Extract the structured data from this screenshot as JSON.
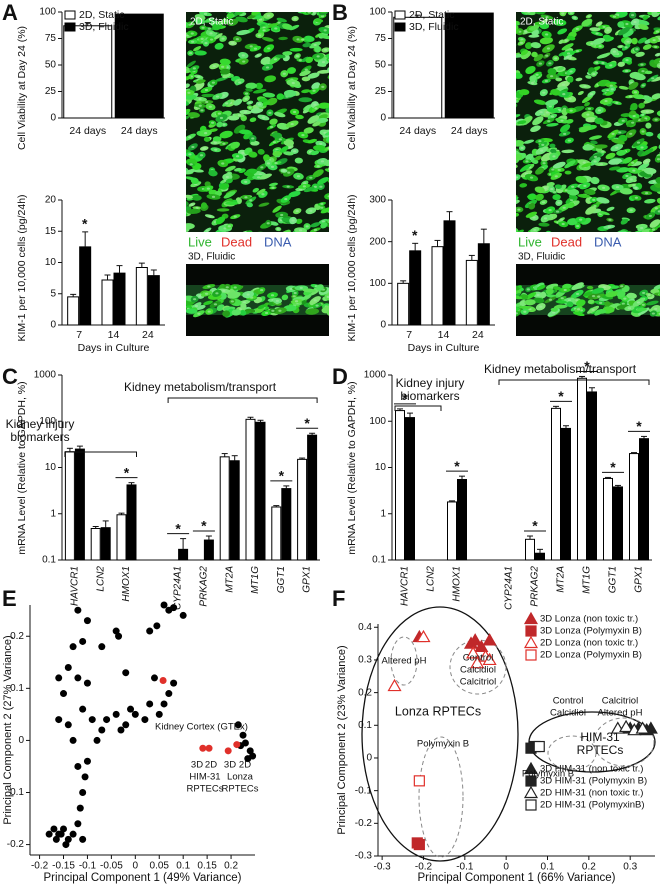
{
  "panels": [
    "A",
    "B",
    "C",
    "D",
    "E",
    "F"
  ],
  "micrographs": [
    {
      "top_title": "2D, Static",
      "bottom_title": "3D, Fluidic",
      "stains": [
        {
          "text": "Live",
          "color": "#2fb52f"
        },
        {
          "text": "Dead",
          "color": "#e0302a"
        },
        {
          "text": "DNA",
          "color": "#3a5cae"
        }
      ]
    },
    {
      "top_title": "2D, Static",
      "bottom_title": "3D, Fluidic",
      "stains": [
        {
          "text": "Live",
          "color": "#2fb52f"
        },
        {
          "text": "Dead",
          "color": "#e0302a"
        },
        {
          "text": "DNA",
          "color": "#3a5cae"
        }
      ]
    }
  ],
  "chart_data": [
    {
      "type": "bar",
      "ylabel": "Cell Viability at Day 24 (%)",
      "categories": [
        "24 days",
        "24 days"
      ],
      "legend": true,
      "series": [
        {
          "name": "2D, Static",
          "color": "#ffffff",
          "values": [
            87,
            null
          ],
          "errors": [
            3,
            null
          ]
        },
        {
          "name": "3D, Fluidic",
          "color": "#000000",
          "values": [
            null,
            98
          ],
          "errors": [
            null,
            null
          ]
        }
      ],
      "ylim": [
        0,
        100
      ],
      "yticks": [
        0,
        25,
        50,
        75,
        100
      ]
    },
    {
      "type": "bar",
      "ylabel": "KIM-1 per 10,000 cells (pg/24h)",
      "xlabel": "Days in Culture",
      "categories": [
        "7",
        "14",
        "24"
      ],
      "series": [
        {
          "color": "#ffffff",
          "values": [
            4.5,
            7.2,
            9.2
          ],
          "errors": [
            0.4,
            0.8,
            0.7
          ]
        },
        {
          "color": "#000000",
          "values": [
            12.5,
            8.3,
            7.9
          ],
          "errors": [
            2.4,
            1.2,
            0.9
          ]
        }
      ],
      "significance": [
        "*",
        null,
        null
      ],
      "ylim": [
        0,
        20
      ],
      "yticks": [
        0,
        5,
        10,
        15,
        20
      ]
    },
    {
      "type": "bar",
      "ylabel": "Cell Viability at Day 24 (%)",
      "categories": [
        "24 days",
        "24 days"
      ],
      "legend": true,
      "series": [
        {
          "name": "2D, Static",
          "color": "#ffffff",
          "values": [
            95,
            null
          ],
          "errors": [
            2,
            null
          ]
        },
        {
          "name": "3D, Fluidic",
          "color": "#000000",
          "values": [
            null,
            99
          ],
          "errors": [
            null,
            null
          ]
        }
      ],
      "ylim": [
        0,
        100
      ],
      "yticks": [
        0,
        25,
        50,
        75,
        100
      ]
    },
    {
      "type": "bar",
      "ylabel": "KIM-1 per 10,000 cells (pg/24h)",
      "xlabel": "Days in Culture",
      "categories": [
        "7",
        "14",
        "24"
      ],
      "series": [
        {
          "color": "#ffffff",
          "values": [
            100,
            188,
            155
          ],
          "errors": [
            6,
            15,
            12
          ]
        },
        {
          "color": "#000000",
          "values": [
            178,
            250,
            195
          ],
          "errors": [
            18,
            22,
            35
          ]
        }
      ],
      "significance": [
        "*",
        null,
        null
      ],
      "ylim": [
        0,
        300
      ],
      "yticks": [
        0,
        100,
        200,
        300
      ]
    },
    {
      "type": "bar",
      "ylabel": "mRNA Level (Relative to GAPDH, %)",
      "log_scale": true,
      "categories": [
        "HAVCR1",
        "LCN2",
        "HMOX1",
        "CYP24A1",
        "PRKAG2",
        "MT2A",
        "MT1G",
        "GGT1",
        "GPX1"
      ],
      "series": [
        {
          "color": "#ffffff",
          "values": [
            22,
            0.48,
            0.95,
            null,
            null,
            17,
            110,
            1.4,
            15
          ],
          "errors": [
            4,
            0.05,
            0.08,
            null,
            null,
            3,
            12,
            0.1,
            1
          ]
        },
        {
          "color": "#000000",
          "values": [
            25,
            0.5,
            4.2,
            0.17,
            0.27,
            14,
            95,
            3.5,
            50
          ],
          "errors": [
            4,
            0.2,
            0.5,
            0.12,
            0.06,
            4,
            10,
            0.5,
            5
          ]
        }
      ],
      "significance": [
        null,
        null,
        "*",
        "*",
        "*",
        null,
        null,
        "*",
        "*"
      ],
      "annotations": [
        "Kidney injury",
        "biomarkers",
        "Kidney metabolism/transport"
      ],
      "ylim": [
        0.1,
        1000
      ],
      "yticks": [
        0.1,
        1,
        10,
        100,
        1000
      ]
    },
    {
      "type": "bar",
      "ylabel": "mRNA Level (Relative to GAPDH, %)",
      "log_scale": true,
      "categories": [
        "HAVCR1",
        "LCN2",
        "HMOX1",
        "CYP24A1",
        "PRKAG2",
        "MT2A",
        "MT1G",
        "GGT1",
        "GPX1"
      ],
      "series": [
        {
          "color": "#ffffff",
          "values": [
            170,
            null,
            1.8,
            null,
            0.28,
            190,
            850,
            5.8,
            20
          ],
          "errors": [
            15,
            null,
            0.1,
            null,
            0.05,
            20,
            80,
            0.3,
            1
          ]
        },
        {
          "color": "#000000",
          "values": [
            120,
            null,
            5.5,
            null,
            0.14,
            70,
            430,
            3.8,
            42
          ],
          "errors": [
            30,
            null,
            1,
            null,
            0.03,
            10,
            100,
            0.3,
            5
          ]
        }
      ],
      "significance": [
        "*",
        null,
        "*",
        null,
        "*",
        "*",
        "*",
        "*",
        "*"
      ],
      "annotations": [
        "Kidney injury",
        "biomarkers",
        "Kidney metabolism/transport"
      ],
      "ylim": [
        0.1,
        1000
      ],
      "yticks": [
        0.1,
        1,
        10,
        100,
        1000
      ]
    },
    {
      "type": "scatter",
      "xlabel": "Principal Component 1 (49% Variance)",
      "ylabel": "Principal Component 2 (27% Variance)",
      "series": [
        {
          "color": "#000000",
          "x": [
            -0.17,
            -0.18,
            -0.165,
            -0.16,
            -0.15,
            -0.155,
            -0.14,
            -0.145,
            -0.13,
            -0.12,
            -0.11,
            -0.115,
            -0.11,
            -0.105,
            -0.1,
            -0.12,
            -0.13,
            -0.14,
            -0.16,
            -0.15,
            -0.16,
            -0.14,
            -0.12,
            -0.1,
            -0.11,
            -0.09,
            -0.08,
            -0.07,
            -0.06,
            -0.04,
            -0.03,
            -0.02,
            -0.01,
            0,
            0.02,
            0.03,
            0.05,
            0.06,
            0.07,
            0.08,
            0.04,
            -0.02,
            -0.04,
            -0.035,
            0.03,
            0.045,
            0.06,
            0.07,
            0.08,
            0.1,
            -0.13,
            -0.11,
            -0.07,
            -0.12,
            -0.1,
            0.215,
            0.225,
            0.23,
            0.24,
            0.235,
            0.245,
            0.22
          ],
          "y": [
            -0.17,
            -0.18,
            -0.19,
            -0.18,
            -0.17,
            -0.18,
            -0.19,
            -0.2,
            -0.18,
            -0.16,
            -0.19,
            -0.13,
            -0.1,
            -0.07,
            -0.04,
            -0.05,
            0,
            0.03,
            0.04,
            0.09,
            0.12,
            0.14,
            0.12,
            0.11,
            0.06,
            0.04,
            0,
            0.02,
            0.04,
            0.05,
            0.02,
            0.03,
            0.06,
            0.05,
            0.04,
            0.07,
            0.05,
            0.07,
            0.09,
            0.11,
            0.12,
            0.13,
            0.21,
            0.2,
            0.21,
            0.22,
            0.26,
            0.25,
            0.255,
            0.24,
            0.18,
            0.19,
            0.18,
            0.25,
            0.23,
            0.03,
            0.01,
            -0.005,
            -0.02,
            -0.035,
            -0.03,
            -0.01
          ]
        },
        {
          "color": "#e0302a",
          "x": [
            0.058,
            0.141,
            0.154,
            0.194,
            0.212
          ],
          "y": [
            0.115,
            -0.015,
            -0.015,
            -0.02,
            -0.008
          ]
        }
      ],
      "annotations": [
        "Kidney Cortex (GTEx)",
        "3D",
        "2D",
        "HIM-31",
        "RPTECs",
        "3D",
        "2D",
        "Lonza",
        "RPTECs"
      ],
      "xlim": [
        -0.22,
        0.25
      ],
      "ylim": [
        -0.22,
        0.26
      ],
      "xticks": [
        -0.2,
        -0.15,
        -0.1,
        -0.05,
        0,
        0.05,
        0.1,
        0.15,
        0.2
      ],
      "yticks": [
        -0.2,
        -0.1,
        0,
        0.1,
        0.2
      ]
    },
    {
      "type": "scatter",
      "xlabel": "Principal Component 1 (66% Variance)",
      "ylabel": "Principal Component 2 (23% Variance)",
      "series": [
        {
          "name": "3D Lonza (non toxic tr.)",
          "color": "#c0282a",
          "marker": "triangle",
          "filled": true,
          "x": [
            -0.21,
            -0.085,
            -0.06,
            -0.04,
            -0.075
          ],
          "y": [
            0.37,
            0.35,
            0.34,
            0.36,
            0.36
          ]
        },
        {
          "name": "3D Lonza (Polymyxin B)",
          "color": "#c0282a",
          "marker": "square",
          "filled": true,
          "x": [
            -0.215,
            -0.21
          ],
          "y": [
            -0.26,
            -0.265
          ]
        },
        {
          "name": "2D Lonza (non toxic tr.)",
          "color": "#e0302a",
          "marker": "triangle",
          "filled": false,
          "x": [
            -0.27,
            -0.2,
            -0.08,
            -0.07,
            -0.05,
            -0.04
          ],
          "y": [
            0.22,
            0.37,
            0.32,
            0.29,
            0.31,
            0.3
          ]
        },
        {
          "name": "2D Lonza (Polymyxin B)",
          "color": "#e0302a",
          "marker": "square",
          "filled": false,
          "x": [
            -0.21
          ],
          "y": [
            -0.07
          ]
        },
        {
          "name": "3D HIM-31 (non toxic tr.)",
          "color": "#222222",
          "marker": "triangle",
          "filled": true,
          "x": [
            0.3,
            0.32,
            0.34,
            0.35
          ],
          "y": [
            0.09,
            0.09,
            0.085,
            0.09
          ]
        },
        {
          "name": "3D HIM-31 (Polymyxin B)",
          "color": "#222222",
          "marker": "square",
          "filled": true,
          "x": [
            0.06,
            0.07
          ],
          "y": [
            0.03,
            0.035
          ]
        },
        {
          "name": "2D HIM-31 (non toxic tr.)",
          "color": "#222222",
          "marker": "triangle",
          "filled": false,
          "x": [
            0.27,
            0.29,
            0.31,
            0.33
          ],
          "y": [
            0.09,
            0.095,
            0.085,
            0.09
          ]
        },
        {
          "name": "2D HIM-31 (PolymyxinB)",
          "color": "#222222",
          "marker": "square",
          "filled": false,
          "x": [
            0.08
          ],
          "y": [
            0.035
          ]
        }
      ],
      "annotations": [
        "Altered pH",
        "Control",
        "Calcidiol",
        "Calcitriol",
        "Lonza RPTECs",
        "Polymyxin B",
        "Control",
        "Calcidiol",
        "Calcitriol",
        "Altered pH",
        "HIM-31",
        "RPTECs",
        "Polymyxin B"
      ],
      "xlim": [
        -0.31,
        0.36
      ],
      "ylim": [
        -0.3,
        0.41
      ],
      "xticks": [
        -0.3,
        -0.2,
        -0.1,
        0,
        0.1,
        0.2,
        0.3
      ],
      "yticks": [
        -0.3,
        -0.2,
        -0.1,
        0,
        0.1,
        0.2,
        0.3,
        0.4
      ]
    }
  ]
}
